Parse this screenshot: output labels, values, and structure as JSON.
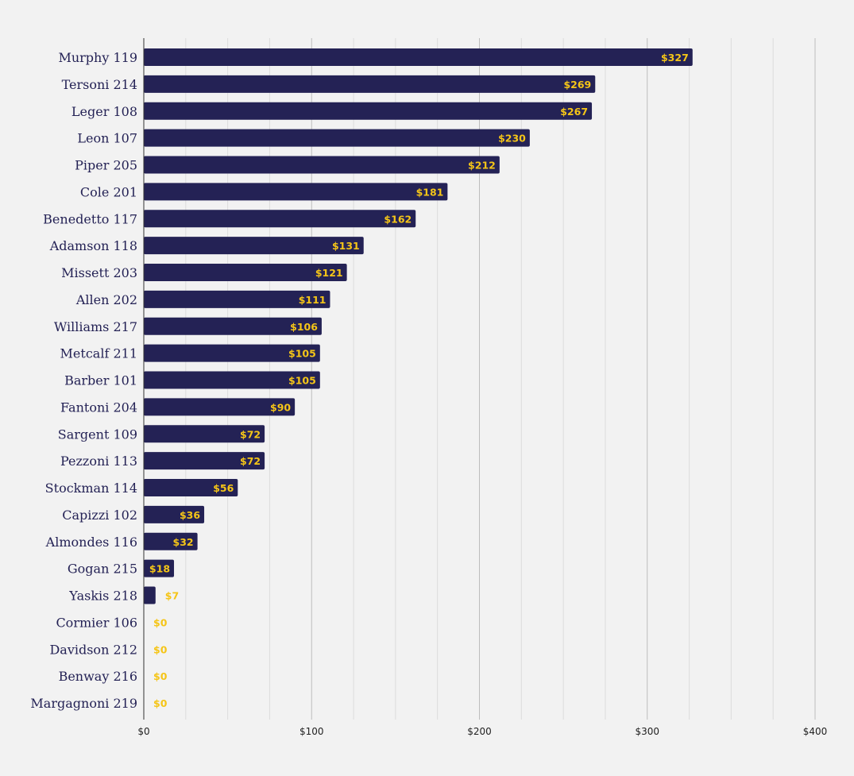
{
  "chart_data": {
    "type": "bar",
    "orientation": "horizontal",
    "title": "",
    "xlabel": "",
    "ylabel": "",
    "xlim": [
      0,
      400
    ],
    "major_ticks": [
      0,
      100,
      200,
      300,
      400
    ],
    "tick_labels": [
      "$0",
      "$100",
      "$200",
      "$300",
      "$400"
    ],
    "minor_gridline_step": 25,
    "grid": true,
    "legend": "none",
    "categories": [
      "Murphy 119",
      "Tersoni 214",
      "Leger 108",
      "Leon 107",
      "Piper 205",
      "Cole 201",
      "Benedetto 117",
      "Adamson 118",
      "Missett 203",
      "Allen 202",
      "Williams 217",
      "Metcalf 211",
      "Barber 101",
      "Fantoni 204",
      "Sargent 109",
      "Pezzoni 113",
      "Stockman 114",
      "Capizzi 102",
      "Almondes 116",
      "Gogan 215",
      "Yaskis 218",
      "Cormier 106",
      "Davidson 212",
      "Benway 216",
      "Margagnoni 219"
    ],
    "values": [
      327,
      269,
      267,
      230,
      212,
      181,
      162,
      131,
      121,
      111,
      106,
      105,
      105,
      90,
      72,
      72,
      56,
      36,
      32,
      18,
      7,
      0,
      0,
      0,
      0
    ],
    "value_labels": [
      "$327",
      "$269",
      "$267",
      "$230",
      "$212",
      "$181",
      "$162",
      "$131",
      "$121",
      "$111",
      "$106",
      "$105",
      "$105",
      "$90",
      "$72",
      "$72",
      "$56",
      "$36",
      "$32",
      "$18",
      "$7",
      "$0",
      "$0",
      "$0",
      "$0"
    ],
    "colors": {
      "background": "#f2f2f2",
      "bar": "#242255",
      "value_label": "#f5c518",
      "category_label": "#242255",
      "major_grid": "#bdbdbd",
      "minor_grid": "#dcdcdc",
      "axis": "#333333"
    }
  }
}
